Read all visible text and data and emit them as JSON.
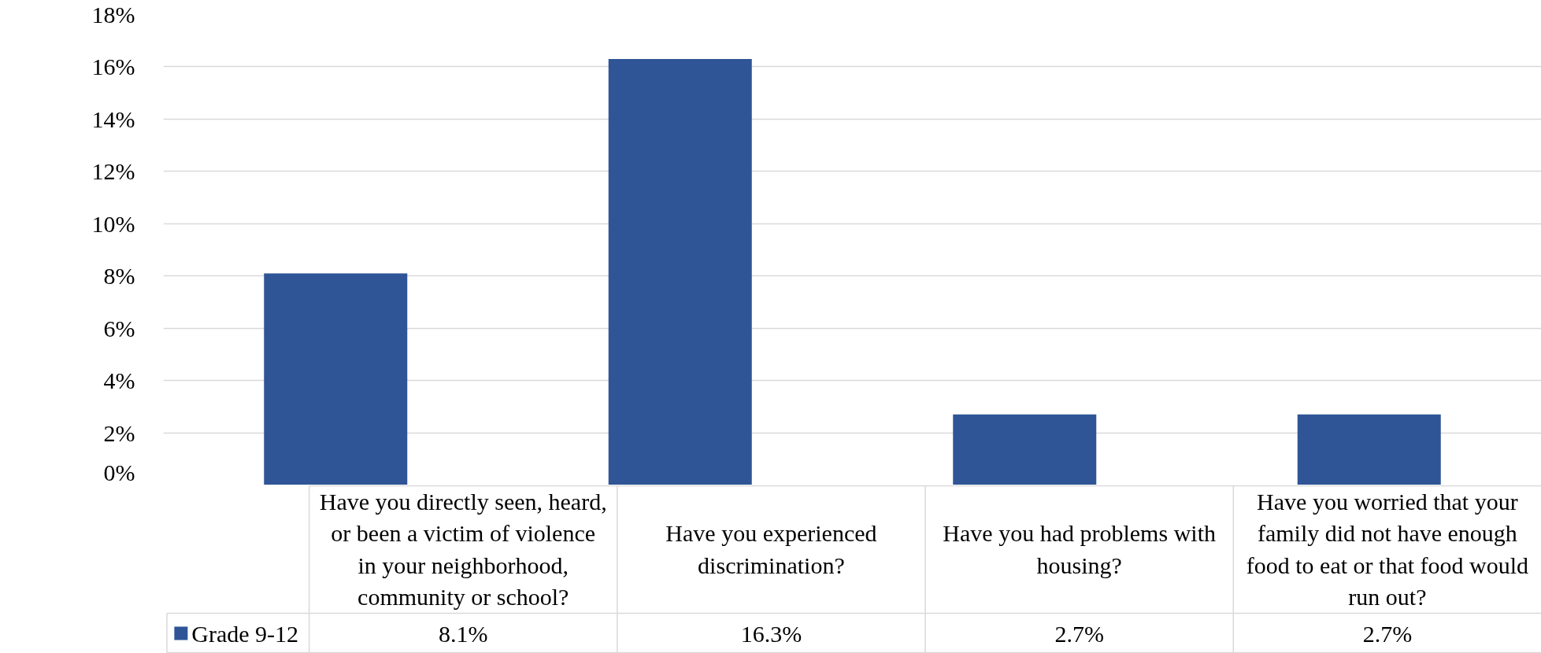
{
  "chart_data": {
    "type": "bar",
    "categories": [
      "Have you directly seen, heard, or been a victim of violence in your neighborhood, community or school?",
      "Have you experienced discrimination?",
      "Have you had problems with housing?",
      "Have you worried that your family did not have enough food to eat or that food would run out?"
    ],
    "series": [
      {
        "name": "Grade 9-12",
        "color": "#2f5597",
        "values": [
          8.1,
          16.3,
          2.7,
          2.7
        ],
        "value_labels": [
          "8.1%",
          "16.3%",
          "2.7%",
          "2.7%"
        ]
      }
    ],
    "ylim": [
      0,
      18
    ],
    "yticks": [
      {
        "value": 0,
        "label": "0%"
      },
      {
        "value": 2,
        "label": "2%"
      },
      {
        "value": 4,
        "label": "4%"
      },
      {
        "value": 6,
        "label": "6%"
      },
      {
        "value": 8,
        "label": "8%"
      },
      {
        "value": 10,
        "label": "10%"
      },
      {
        "value": 12,
        "label": "12%"
      },
      {
        "value": 14,
        "label": "14%"
      },
      {
        "value": 16,
        "label": "16%"
      },
      {
        "value": 18,
        "label": "18%"
      }
    ],
    "grid": "y",
    "legend": "bottom left"
  }
}
